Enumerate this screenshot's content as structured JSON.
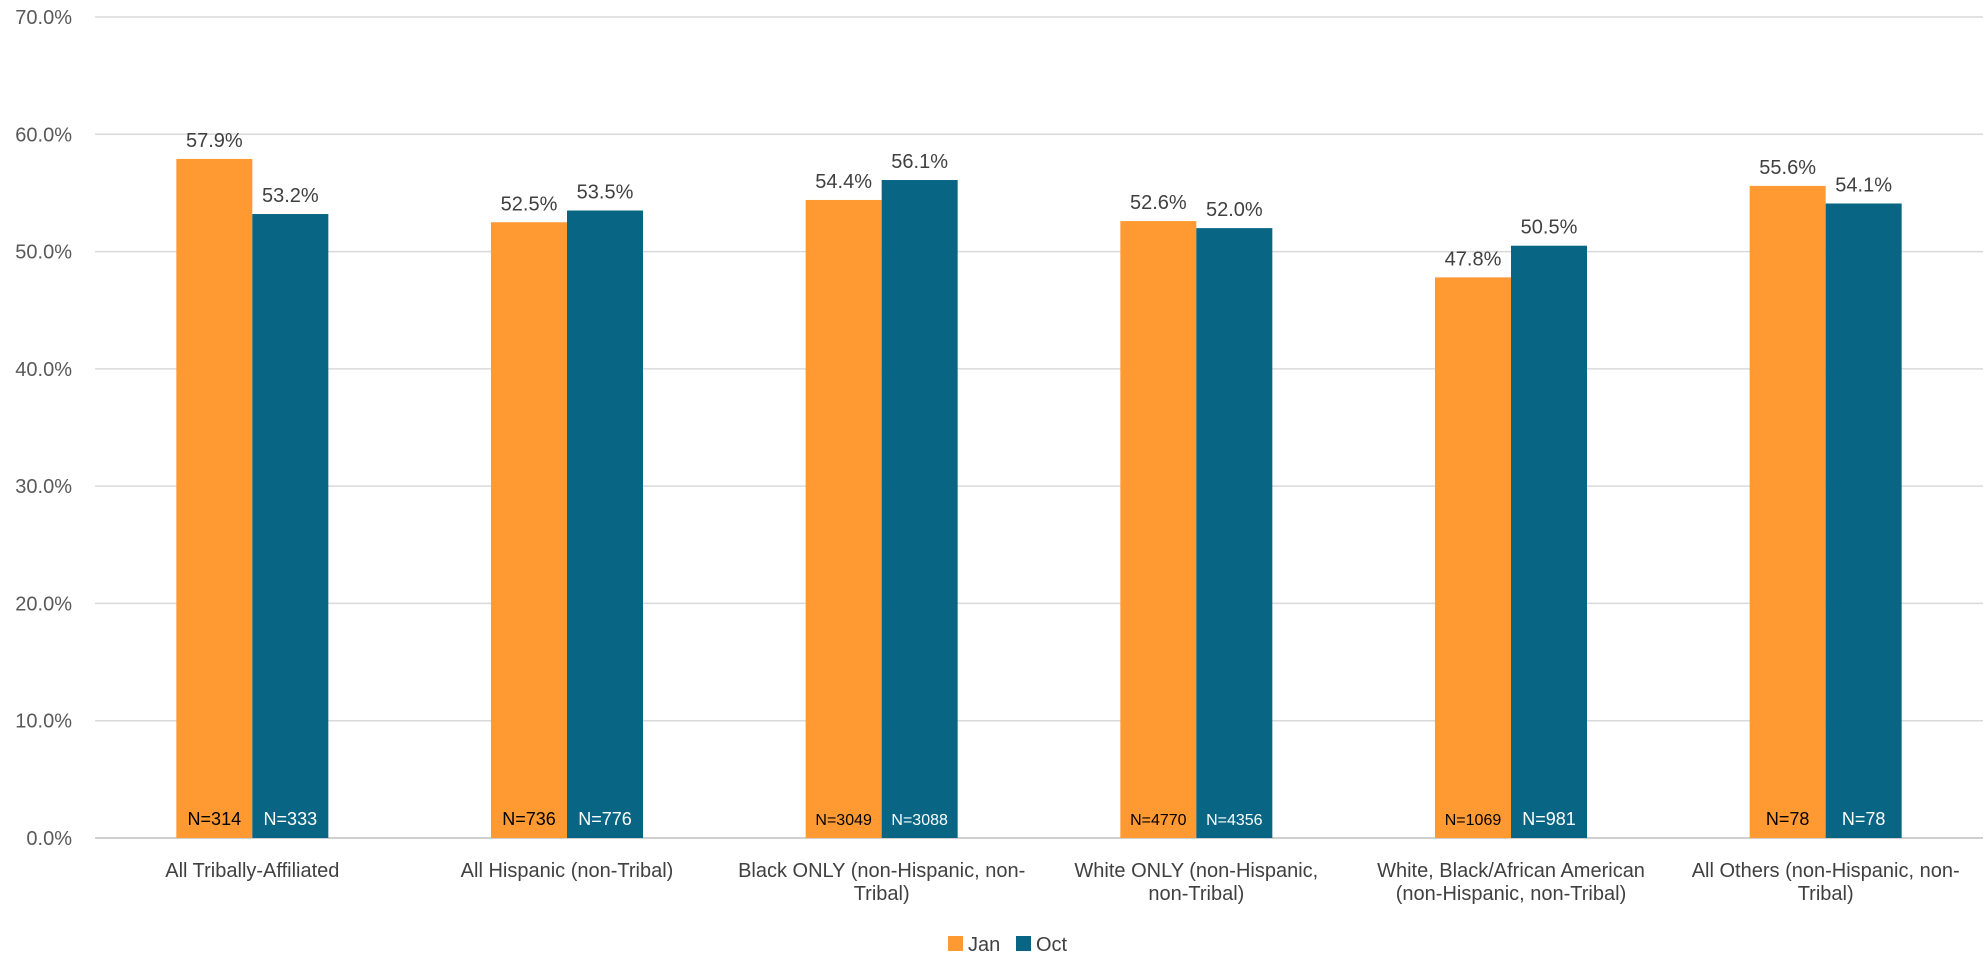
{
  "chart_data": {
    "type": "bar",
    "title": "",
    "xlabel": "",
    "ylabel": "",
    "ylim": [
      0,
      70
    ],
    "y_ticks": [
      "0.0%",
      "10.0%",
      "20.0%",
      "30.0%",
      "40.0%",
      "50.0%",
      "60.0%",
      "70.0%"
    ],
    "grid": true,
    "legend_position": "bottom",
    "categories": [
      [
        "All Tribally-Affiliated"
      ],
      [
        "All Hispanic (non-Tribal)"
      ],
      [
        "Black ONLY (non-Hispanic, non-",
        "Tribal)"
      ],
      [
        "White ONLY (non-Hispanic,",
        "non-Tribal)"
      ],
      [
        "White, Black/African American",
        "(non-Hispanic, non-Tribal)"
      ],
      [
        "All Others (non-Hispanic, non-",
        "Tribal)"
      ]
    ],
    "series": [
      {
        "name": "Jan",
        "color": "#FF9A33",
        "values": [
          57.9,
          52.5,
          54.4,
          52.6,
          47.8,
          55.6
        ],
        "labels": [
          "57.9%",
          "52.5%",
          "54.4%",
          "52.6%",
          "47.8%",
          "55.6%"
        ],
        "n_labels": [
          "N=314",
          "N=736",
          "N=3049",
          "N=4770",
          "N=1069",
          "N=78"
        ]
      },
      {
        "name": "Oct",
        "color": "#086584",
        "values": [
          53.2,
          53.5,
          56.1,
          52.0,
          50.5,
          54.1
        ],
        "labels": [
          "53.2%",
          "53.5%",
          "56.1%",
          "52.0%",
          "50.5%",
          "54.1%"
        ],
        "n_labels": [
          "N=333",
          "N=776",
          "N=3088",
          "N=4356",
          "N=981",
          "N=78"
        ]
      }
    ]
  }
}
